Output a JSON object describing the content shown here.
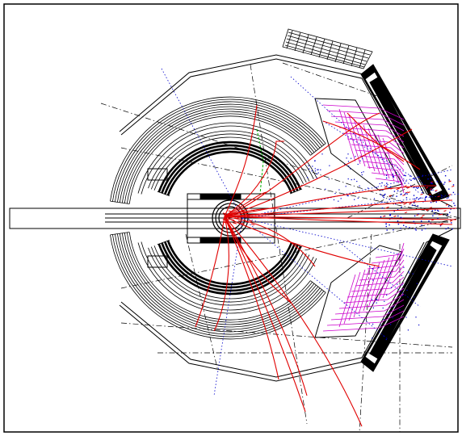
{
  "viewer": {
    "background": "#ffffff",
    "frame_color": "#000000"
  },
  "colors": {
    "detector": "#000000",
    "track": "#e00000",
    "neutral": "#0000cc",
    "calo_hit": "#cc00cc",
    "aux": "#00b000"
  }
}
